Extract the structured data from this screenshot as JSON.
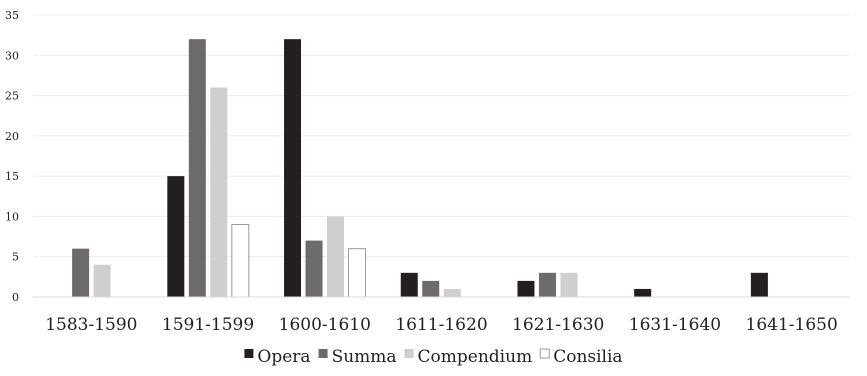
{
  "chart_data": {
    "type": "bar",
    "title": "",
    "xlabel": "",
    "ylabel": "",
    "ylim": [
      0,
      35
    ],
    "yticks": [
      0,
      5,
      10,
      15,
      20,
      25,
      30,
      35
    ],
    "grid": true,
    "legend_position": "bottom",
    "categories": [
      "1583-1590",
      "1591-1599",
      "1600-1610",
      "1611-1620",
      "1621-1630",
      "1631-1640",
      "1641-1650"
    ],
    "series": [
      {
        "name": "Opera",
        "color": "#231f20",
        "outline": false,
        "values": [
          0,
          15,
          32,
          3,
          2,
          1,
          3
        ]
      },
      {
        "name": "Summa",
        "color": "#6d6a6b",
        "outline": false,
        "values": [
          6,
          32,
          7,
          2,
          3,
          0,
          0
        ]
      },
      {
        "name": "Compendium",
        "color": "#cfcfcf",
        "outline": false,
        "values": [
          4,
          26,
          10,
          1,
          3,
          0,
          0
        ]
      },
      {
        "name": "Consilia",
        "color": "#ffffff",
        "outline": true,
        "values": [
          0,
          9,
          6,
          0,
          0,
          0,
          0
        ]
      }
    ]
  }
}
